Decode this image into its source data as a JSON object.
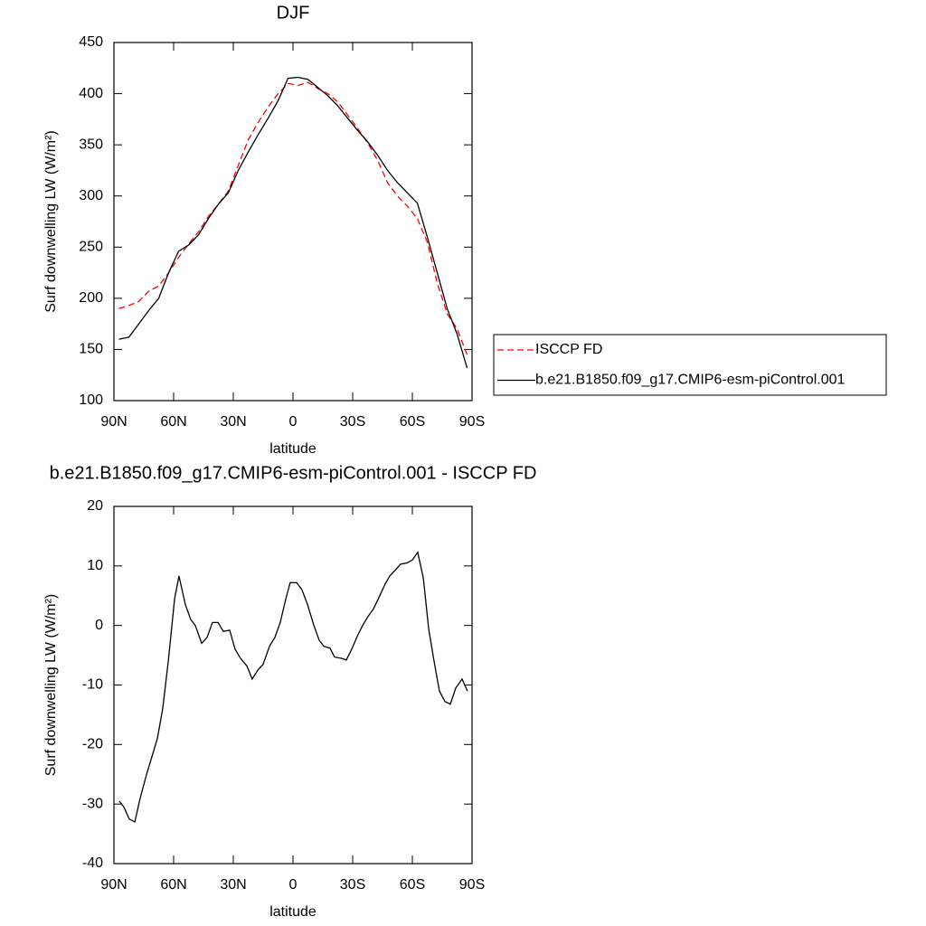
{
  "chart_data": [
    {
      "type": "line",
      "title": "DJF",
      "xlabel": "latitude",
      "ylabel": "Surf downwelling LW (W/m²)",
      "x": [
        87.5,
        82.5,
        77.5,
        72.5,
        67.5,
        62.5,
        57.5,
        52.5,
        47.5,
        42.5,
        37.5,
        32.5,
        27.5,
        22.5,
        17.5,
        12.5,
        7.5,
        2.5,
        -2.5,
        -7.5,
        -12.5,
        -17.5,
        -22.5,
        -27.5,
        -32.5,
        -37.5,
        -42.5,
        -47.5,
        -52.5,
        -57.5,
        -62.5,
        -67.5,
        -72.5,
        -77.5,
        -82.5,
        -87.5
      ],
      "series": [
        {
          "name": "ISCCP FD",
          "color": "#ff0000",
          "style": "dashed",
          "values": [
            190,
            193,
            197,
            207,
            212,
            225,
            240,
            253,
            265,
            280,
            292,
            305,
            330,
            355,
            372,
            387,
            400,
            410,
            408,
            411,
            405,
            400,
            392,
            379,
            366,
            352,
            335,
            313,
            300,
            290,
            278,
            255,
            215,
            185,
            170,
            145
          ]
        },
        {
          "name": "b.e21.B1850.f09_g17.CMIP6-esm-piControl.001",
          "color": "#000000",
          "style": "solid",
          "values": [
            160,
            162,
            175,
            188,
            200,
            225,
            246,
            252,
            262,
            278,
            292,
            303,
            325,
            343,
            360,
            376,
            393,
            415,
            416,
            414,
            406,
            398,
            388,
            376,
            364,
            353,
            340,
            325,
            313,
            303,
            293,
            260,
            225,
            190,
            165,
            132
          ]
        }
      ],
      "xlim": [
        90,
        -90
      ],
      "xticks": [
        {
          "value": 90,
          "label": "90N"
        },
        {
          "value": 60,
          "label": "60N"
        },
        {
          "value": 30,
          "label": "30N"
        },
        0,
        {
          "value": -30,
          "label": "30S"
        },
        {
          "value": -60,
          "label": "60S"
        },
        {
          "value": -90,
          "label": "90S"
        }
      ],
      "ylim": [
        100,
        450
      ],
      "yticks": [
        100,
        150,
        200,
        250,
        300,
        350,
        400,
        450
      ],
      "legend": "outside-right"
    },
    {
      "type": "line",
      "title": "b.e21.B1850.f09_g17.CMIP6-esm-piControl.001 - ISCCP FD",
      "xlabel": "latitude",
      "ylabel": "Surf downwelling LW (W/m²)",
      "x": [
        87.3,
        85,
        82.3,
        79.5,
        76.8,
        73.6,
        68.2,
        65.5,
        62.7,
        59.5,
        57.3,
        54.1,
        51.4,
        49.1,
        45.9,
        43.2,
        40.5,
        37.7,
        35,
        31.8,
        29.1,
        26.4,
        23.2,
        20.5,
        17.7,
        15,
        11.8,
        9.1,
        6.4,
        3.6,
        1.4,
        -1.8,
        -4.5,
        -7.3,
        -10.5,
        -13.2,
        -15.5,
        -18.6,
        -20.9,
        -24.1,
        -26.8,
        -29.5,
        -32.3,
        -35,
        -37.7,
        -40.5,
        -43.6,
        -46.4,
        -48.6,
        -51.4,
        -54.1,
        -57.3,
        -60,
        -62.7,
        -65.5,
        -68.2,
        -70.9,
        -73.6,
        -76.4,
        -79.1,
        -81.8,
        -85,
        -87.7
      ],
      "series": [
        {
          "name": "b.e21.B1850.f09_g17.CMIP6-esm-piControl.001 - ISCCP FD",
          "color": "#000000",
          "style": "solid",
          "values": [
            -29.5,
            -30.5,
            -32.5,
            -33,
            -29,
            -25,
            -19,
            -14,
            -6,
            4.5,
            8.3,
            3.5,
            1,
            0,
            -3,
            -2,
            0.5,
            0.5,
            -1,
            -0.8,
            -4,
            -5.5,
            -6.8,
            -9,
            -7.5,
            -6.5,
            -3.5,
            -2,
            0.5,
            4.5,
            7.2,
            7.2,
            6,
            3.5,
            0,
            -2.5,
            -3.5,
            -3.8,
            -5.3,
            -5.5,
            -5.8,
            -4,
            -1.8,
            0,
            1.5,
            2.8,
            5,
            7,
            8.3,
            9.3,
            10.3,
            10.5,
            11,
            12.3,
            8,
            -0.5,
            -6,
            -11,
            -12.8,
            -13.2,
            -10.5,
            -9,
            -11
          ]
        }
      ],
      "xlim": [
        90,
        -90
      ],
      "xticks": [
        {
          "value": 90,
          "label": "90N"
        },
        {
          "value": 60,
          "label": "60N"
        },
        {
          "value": 30,
          "label": "30N"
        },
        0,
        {
          "value": -30,
          "label": "30S"
        },
        {
          "value": -60,
          "label": "60S"
        },
        {
          "value": -90,
          "label": "90S"
        }
      ],
      "ylim": [
        -40,
        20
      ],
      "yticks": [
        -40,
        -30,
        -20,
        -10,
        0,
        10,
        20
      ]
    }
  ]
}
